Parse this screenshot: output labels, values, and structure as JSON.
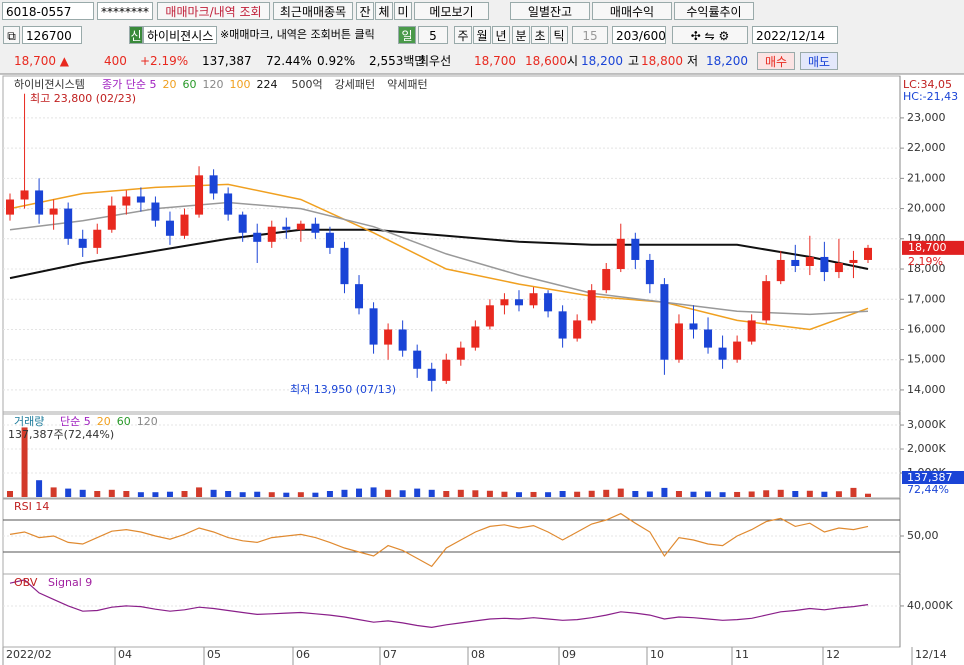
{
  "toolbar": {
    "account": "6018-0557",
    "password": "********",
    "buttons": [
      "매매마크/내역 조회",
      "최근매매종목",
      "잔",
      "체",
      "미",
      "메모보기",
      "일별잔고",
      "매매수익",
      "수익률추이"
    ],
    "code": "126700",
    "tag": "신",
    "name": "하이비젼시스",
    "notice": "※매매마크, 내역은 조회버튼 클릭",
    "period": "일",
    "period_n": "5",
    "units": [
      "주",
      "월",
      "년",
      "분",
      "초",
      "틱"
    ],
    "tick_n": "15",
    "count": "203/600",
    "date": "2022/12/14"
  },
  "quote": [
    "18,700 ▲",
    "400",
    "+2.19%",
    "137,387",
    "72.44%",
    "0.92%",
    "2,553백만",
    "최우선",
    "18,700",
    "18,600",
    "시",
    "18,200",
    "고",
    "18,800",
    "저",
    "18,200",
    "매수",
    "매도"
  ],
  "chart_data": [
    {
      "type": "candlestick",
      "title": "하이비젼시스템",
      "ma_labels": [
        "종가 단순 5",
        "20",
        "60",
        "120",
        "100",
        "224"
      ],
      "pattern_labels": [
        "500억",
        "강세패턴",
        "약세패턴"
      ],
      "annotations": [
        "최고 23,800 (02/23)",
        "최저 13,950 (07/13)"
      ],
      "corner_labels": [
        "LC:34,05",
        "HC:-21,43"
      ],
      "last_label": "18,700",
      "change_label": "2.19%",
      "up_color": "#e8291f",
      "down_color": "#1a44d6",
      "ylim": [
        13270,
        24320
      ],
      "yticks": [
        {
          "value": 14000,
          "label": "14,000"
        },
        {
          "value": 15000,
          "label": "15,000"
        },
        {
          "value": 16000,
          "label": "16,000"
        },
        {
          "value": 17000,
          "label": "17,000"
        },
        {
          "value": 18000,
          "label": "18,000"
        },
        {
          "value": 19000,
          "label": "19,000"
        },
        {
          "value": 20000,
          "label": "20,000"
        },
        {
          "value": 21000,
          "label": "21,000"
        },
        {
          "value": 22000,
          "label": "22,000"
        },
        {
          "value": 23000,
          "label": "23,000"
        }
      ],
      "open": [
        19800,
        20300,
        20600,
        19800,
        20000,
        19000,
        18700,
        19300,
        20100,
        20400,
        20200,
        19600,
        19100,
        19800,
        21100,
        20500,
        19800,
        19200,
        18900,
        19400,
        19300,
        19500,
        19200,
        18700,
        17500,
        16700,
        15500,
        16000,
        15300,
        14700,
        14300,
        15000,
        15400,
        16100,
        16800,
        17000,
        16800,
        17200,
        16600,
        15700,
        16300,
        17300,
        18000,
        19000,
        18300,
        17500,
        15000,
        16200,
        16000,
        15400,
        15000,
        15600,
        16300,
        17600,
        18300,
        18100,
        18400,
        17900,
        18200,
        18300
      ],
      "high": [
        20500,
        23800,
        21000,
        20300,
        20200,
        19300,
        19500,
        20400,
        20600,
        20700,
        20400,
        19900,
        20000,
        21400,
        21300,
        20700,
        19900,
        19500,
        19600,
        19700,
        19600,
        19700,
        19400,
        18900,
        17800,
        16900,
        16200,
        16300,
        15500,
        14900,
        15200,
        15600,
        16300,
        17000,
        17200,
        17300,
        17400,
        17300,
        16800,
        16500,
        17500,
        18200,
        19500,
        19200,
        18500,
        17700,
        16500,
        16800,
        16400,
        15800,
        15800,
        16500,
        17800,
        18600,
        18800,
        19100,
        18900,
        19000,
        18600,
        18800
      ],
      "low": [
        19600,
        20000,
        19500,
        19300,
        18800,
        18400,
        18500,
        19200,
        19800,
        19900,
        19400,
        18800,
        19000,
        19700,
        20300,
        19600,
        18900,
        18200,
        18700,
        19000,
        18900,
        19000,
        18500,
        17200,
        16500,
        15200,
        15000,
        15100,
        14400,
        13950,
        14200,
        14800,
        15300,
        16000,
        16500,
        16600,
        16700,
        16400,
        15400,
        15600,
        16200,
        17200,
        17900,
        18000,
        17200,
        14500,
        14900,
        15700,
        15200,
        14700,
        14900,
        15500,
        16200,
        17500,
        17900,
        17800,
        17600,
        17700,
        17700,
        18200
      ],
      "close": [
        20300,
        20600,
        19800,
        20000,
        19000,
        18700,
        19300,
        20100,
        20400,
        20200,
        19600,
        19100,
        19800,
        21100,
        20500,
        19800,
        19200,
        18900,
        19400,
        19300,
        19500,
        19200,
        18700,
        17500,
        16700,
        15500,
        16000,
        15300,
        14700,
        14300,
        15000,
        15400,
        16100,
        16800,
        17000,
        16800,
        17200,
        16600,
        15700,
        16300,
        17300,
        18000,
        19000,
        18300,
        17500,
        15000,
        16200,
        16000,
        15400,
        15000,
        15600,
        16300,
        17600,
        18300,
        18100,
        18400,
        17900,
        18200,
        18300,
        18700
      ],
      "lines": [
        {
          "name": "224",
          "color": "#111111",
          "x": [
            0,
            5,
            10,
            15,
            20,
            25,
            30,
            35,
            40,
            45,
            50,
            55,
            59
          ],
          "values": [
            17700,
            18200,
            18600,
            19000,
            19300,
            19300,
            19100,
            18900,
            18800,
            18800,
            18800,
            18400,
            18000
          ]
        },
        {
          "name": "100",
          "color": "#f0a020",
          "x": [
            0,
            5,
            10,
            15,
            20,
            25,
            30,
            35,
            40,
            45,
            50,
            55,
            59
          ],
          "values": [
            20000,
            20500,
            20700,
            20800,
            20300,
            19200,
            18000,
            17500,
            17100,
            16900,
            16300,
            16000,
            16700
          ]
        },
        {
          "name": "120",
          "color": "#999999",
          "x": [
            0,
            5,
            10,
            15,
            20,
            25,
            30,
            35,
            40,
            45,
            50,
            55,
            59
          ],
          "values": [
            19300,
            19600,
            20000,
            20200,
            20000,
            19400,
            18500,
            17800,
            17200,
            16900,
            16600,
            16500,
            16600
          ]
        }
      ]
    },
    {
      "type": "bar",
      "title": "거래량",
      "ma_labels": [
        "단순 5",
        "20",
        "60",
        "120"
      ],
      "caption": "137,387주(72,44%)",
      "last_label": "137,387",
      "ratio_label": "72,44%",
      "color": "#d23a2a",
      "ylim": [
        0,
        3460
      ],
      "yticks": [
        {
          "value": 1000,
          "label": "1,000K"
        },
        {
          "value": 2000,
          "label": "2,000K"
        },
        {
          "value": 3000,
          "label": "3,000K"
        }
      ],
      "values": [
        250,
        2900,
        700,
        400,
        350,
        300,
        250,
        300,
        250,
        200,
        200,
        220,
        250,
        400,
        300,
        250,
        200,
        220,
        200,
        180,
        200,
        180,
        250,
        300,
        350,
        400,
        300,
        280,
        350,
        300,
        250,
        300,
        280,
        260,
        220,
        200,
        210,
        200,
        250,
        220,
        260,
        300,
        350,
        250,
        230,
        380,
        250,
        220,
        230,
        200,
        210,
        230,
        280,
        300,
        250,
        260,
        220,
        240,
        380,
        137.387
      ]
    },
    {
      "type": "line",
      "title": "RSI 14",
      "color": "#e08a30",
      "ylim": [
        5,
        95
      ],
      "yticks": [
        {
          "value": 50,
          "label": "50,00"
        }
      ],
      "values": [
        52,
        55,
        48,
        50,
        42,
        40,
        48,
        56,
        58,
        55,
        50,
        46,
        52,
        60,
        55,
        48,
        44,
        42,
        48,
        50,
        52,
        48,
        42,
        35,
        30,
        25,
        38,
        32,
        22,
        12,
        35,
        45,
        55,
        62,
        64,
        60,
        63,
        55,
        45,
        55,
        65,
        70,
        78,
        66,
        55,
        25,
        48,
        45,
        40,
        38,
        50,
        58,
        68,
        72,
        62,
        66,
        55,
        60,
        58,
        62
      ]
    },
    {
      "type": "line",
      "title": "OBV",
      "subtitle": "Signal 9",
      "color": "#8a1f8a",
      "ylim": [
        34000,
        44600
      ],
      "yticks": [
        {
          "value": 40000,
          "label": "40,000K"
        }
      ],
      "values": [
        43500,
        44000,
        42000,
        41000,
        40000,
        39200,
        39300,
        39800,
        40000,
        39900,
        39500,
        39200,
        39400,
        39800,
        39600,
        39300,
        39000,
        38700,
        38800,
        38900,
        39000,
        38800,
        38600,
        38300,
        37900,
        37500,
        37700,
        37400,
        37000,
        36700,
        37100,
        37400,
        37700,
        38000,
        38100,
        38000,
        38200,
        38000,
        37800,
        37900,
        38200,
        38600,
        39100,
        38900,
        38600,
        38000,
        38300,
        38200,
        38000,
        37800,
        37900,
        38100,
        38600,
        39100,
        39300,
        39600,
        39400,
        39700,
        39900,
        40200
      ],
      "date_labels": [
        "2022/02",
        "04",
        "05",
        "06",
        "07",
        "08",
        "09",
        "10",
        "11",
        "12",
        "12/14"
      ]
    }
  ]
}
